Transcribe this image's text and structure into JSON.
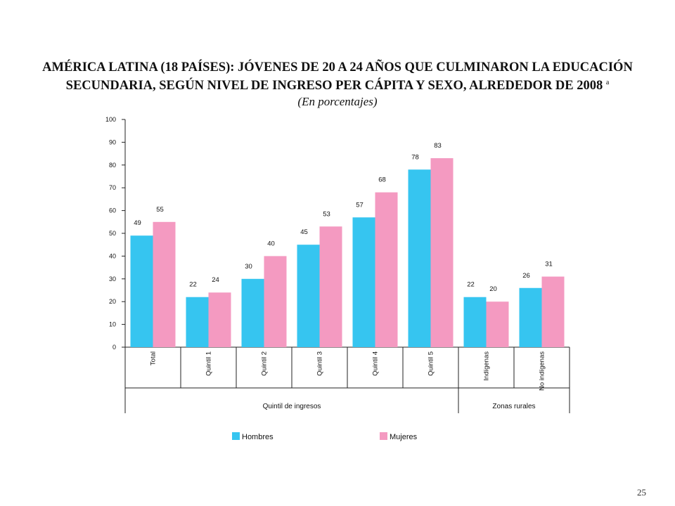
{
  "title_line1": "AMÉRICA LATINA (18 PAÍSES): JÓVENES DE 20 A 24 AÑOS QUE CULMINARON LA EDUCACIÓN",
  "title_line2": "SECUNDARIA, SEGÚN NIVEL DE INGRESO PER CÁPITA Y SEXO, ALREDEDOR DE 2008",
  "title_footnote": "a",
  "subtitle": "(En porcentajes)",
  "page_number": "25",
  "colors": {
    "hombres": "#36c5f0",
    "mujeres": "#f49ac1",
    "axis": "#222222"
  },
  "chart_data": {
    "type": "bar",
    "categories": [
      "Total",
      "Quintil 1",
      "Quintil 2",
      "Quintil 3",
      "Quintil 4",
      "Quintil 5",
      "Indígenas",
      "No indígenas"
    ],
    "series": [
      {
        "name": "Hombres",
        "values": [
          49,
          22,
          30,
          45,
          57,
          78,
          22,
          26
        ]
      },
      {
        "name": "Mujeres",
        "values": [
          55,
          24,
          40,
          53,
          68,
          83,
          20,
          31
        ]
      }
    ],
    "groups": [
      {
        "label": "Quintil de ingresos",
        "categories": [
          "Total",
          "Quintil 1",
          "Quintil 2",
          "Quintil 3",
          "Quintil 4",
          "Quintil 5"
        ]
      },
      {
        "label": "Zonas rurales",
        "categories": [
          "Indígenas",
          "No indígenas"
        ]
      }
    ],
    "yticks": [
      "0",
      "10",
      "20",
      "30",
      "40",
      "50",
      "60",
      "70",
      "80",
      "90",
      "100"
    ],
    "ylim": [
      0,
      100
    ],
    "grid": false,
    "legend": "bottom"
  }
}
